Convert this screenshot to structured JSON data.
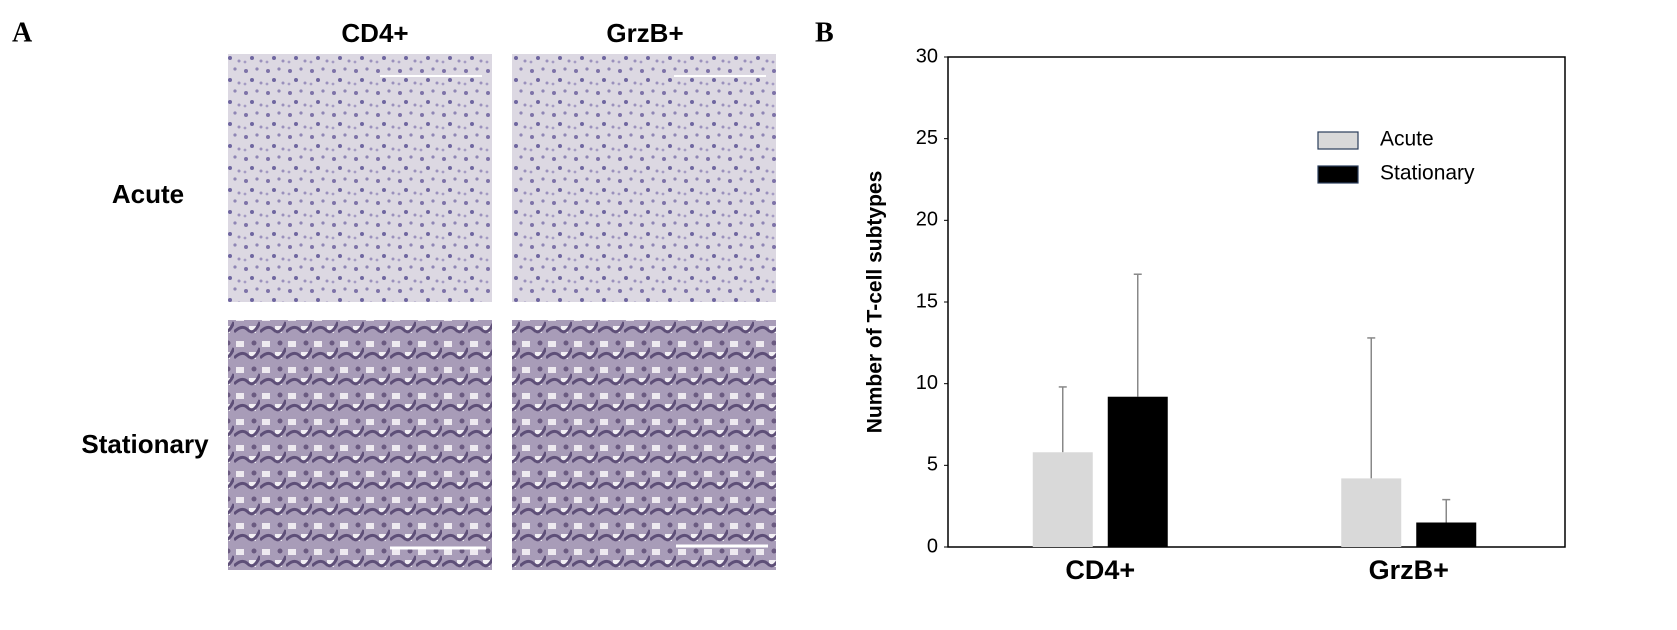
{
  "panel_labels": [
    "A",
    "B"
  ],
  "micrographs": {
    "columns": [
      "CD4+",
      "GrzB+"
    ],
    "rows": [
      "Acute",
      "Stationary"
    ]
  },
  "chart_data": {
    "type": "bar",
    "ylabel": "Number of T-cell subtypes",
    "categories": [
      "CD4+",
      "GrzB+"
    ],
    "series": [
      {
        "name": "Acute",
        "color": "#d9d9d9",
        "values": [
          5.8,
          4.2
        ],
        "errors": [
          4.0,
          8.6
        ]
      },
      {
        "name": "Stationary",
        "color": "#000000",
        "values": [
          9.2,
          1.5
        ],
        "errors": [
          7.5,
          1.4
        ]
      }
    ],
    "ylim": [
      0,
      30
    ],
    "yticks": [
      0,
      5,
      10,
      15,
      20,
      25,
      30
    ],
    "grid": false,
    "legend": "upper-right"
  }
}
